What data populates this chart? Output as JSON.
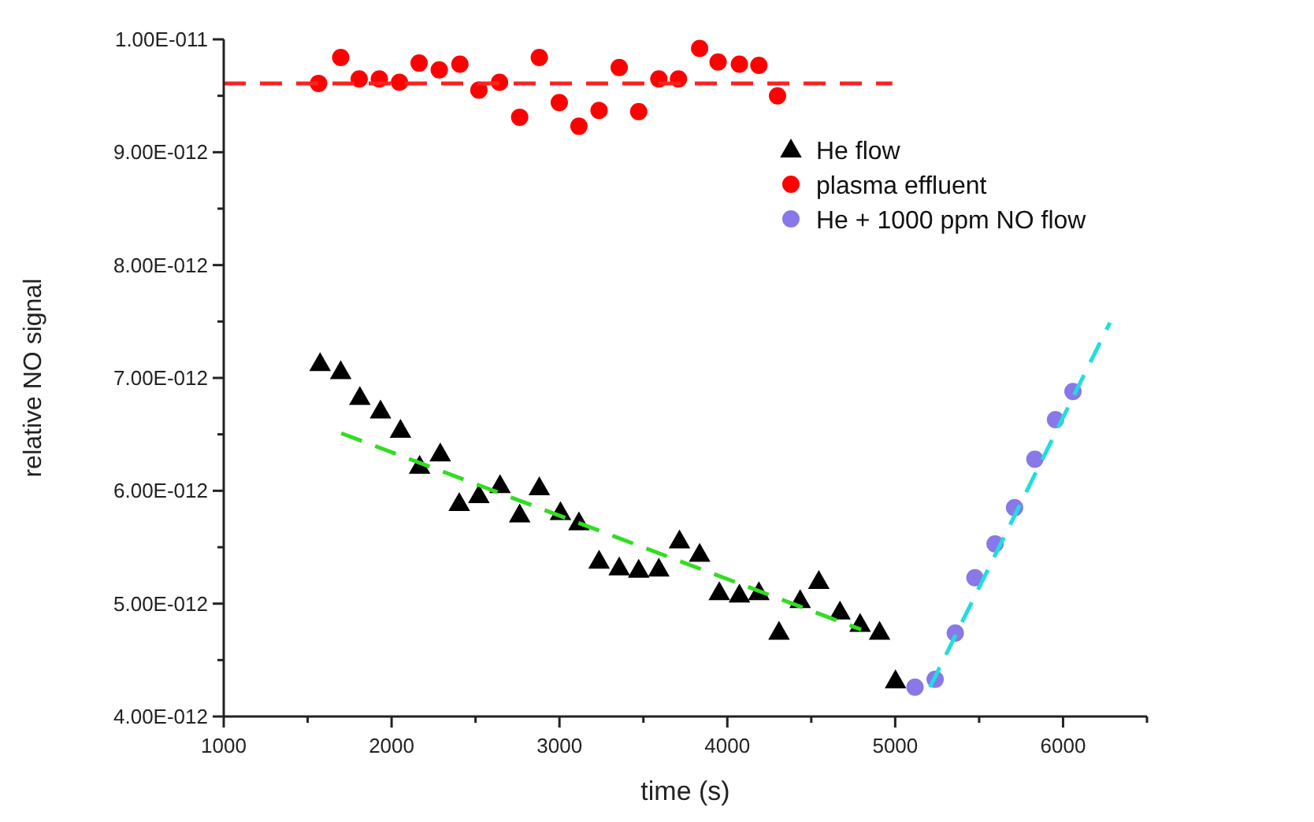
{
  "chart_data": {
    "type": "scatter",
    "xlabel": "time (s)",
    "ylabel": "relative NO signal",
    "xlim": [
      1000,
      6500
    ],
    "ylim": [
      4e-12,
      1e-11
    ],
    "xticks": [
      1000,
      {
        "value": 1500,
        "label": null
      },
      2000,
      {
        "value": 2500,
        "label": null
      },
      3000,
      {
        "value": 3500,
        "label": null
      },
      4000,
      {
        "value": 4500,
        "label": null
      },
      5000,
      {
        "value": 5500,
        "label": null
      },
      6000,
      {
        "value": 6500,
        "label": null
      }
    ],
    "yticks": [
      {
        "value": 4e-12,
        "label": "4.00E-012"
      },
      {
        "value": 4.5e-12,
        "label": null
      },
      {
        "value": 5e-12,
        "label": "5.00E-012"
      },
      {
        "value": 5.5e-12,
        "label": null
      },
      {
        "value": 6e-12,
        "label": "6.00E-012"
      },
      {
        "value": 6.5e-12,
        "label": null
      },
      {
        "value": 7e-12,
        "label": "7.00E-012"
      },
      {
        "value": 7.5e-12,
        "label": null
      },
      {
        "value": 8e-12,
        "label": "8.00E-012"
      },
      {
        "value": 8.5e-12,
        "label": null
      },
      {
        "value": 9e-12,
        "label": "9.00E-012"
      },
      {
        "value": 9.5e-12,
        "label": null
      },
      {
        "value": 1e-11,
        "label": "1.00E-011"
      }
    ],
    "grid": false,
    "legend": "top right",
    "series": [
      {
        "name": "He flow",
        "color": "#000000",
        "marker": "triangle",
        "x": [
          1574,
          1697,
          1811,
          1934,
          2053,
          2167,
          2290,
          2403,
          2520,
          2646,
          2763,
          2880,
          3006,
          3116,
          3236,
          3356,
          3472,
          3592,
          3715,
          3835,
          3952,
          4072,
          4188,
          4308,
          4434,
          4545,
          4671,
          4791,
          4907,
          5002
        ],
        "values": [
          7.13e-12,
          7.06e-12,
          6.83e-12,
          6.71e-12,
          6.54e-12,
          6.22e-12,
          6.33e-12,
          5.89e-12,
          5.96e-12,
          6.05e-12,
          5.79e-12,
          6.03e-12,
          5.81e-12,
          5.72e-12,
          5.38e-12,
          5.32e-12,
          5.3e-12,
          5.31e-12,
          5.56e-12,
          5.44e-12,
          5.1e-12,
          5.08e-12,
          5.1e-12,
          4.75e-12,
          5.03e-12,
          5.2e-12,
          4.93e-12,
          4.82e-12,
          4.75e-12,
          4.32e-12
        ]
      },
      {
        "name": "plasma effluent",
        "color": "#ff0000",
        "marker": "circle",
        "x": [
          1565,
          1697,
          1807,
          1927,
          2047,
          2164,
          2284,
          2407,
          2520,
          2643,
          2763,
          2880,
          2999,
          3116,
          3236,
          3356,
          3472,
          3592,
          3709,
          3835,
          3945,
          4072,
          4188,
          4299
        ],
        "values": [
          9.61e-12,
          9.84e-12,
          9.65e-12,
          9.65e-12,
          9.62e-12,
          9.79e-12,
          9.73e-12,
          9.78e-12,
          9.55e-12,
          9.62e-12,
          9.31e-12,
          9.84e-12,
          9.44e-12,
          9.23e-12,
          9.37e-12,
          9.75e-12,
          9.36e-12,
          9.65e-12,
          9.65e-12,
          9.92e-12,
          9.8e-12,
          9.78e-12,
          9.77e-12,
          9.5e-12
        ]
      },
      {
        "name": "He + 1000 ppm NO flow",
        "color": "#8878e8",
        "marker": "circle",
        "x": [
          5118,
          5238,
          5358,
          5475,
          5595,
          5711,
          5832,
          5955,
          6059
        ],
        "values": [
          4.26e-12,
          4.33e-12,
          4.74e-12,
          5.23e-12,
          5.53e-12,
          5.85e-12,
          6.28e-12,
          6.63e-12,
          6.88e-12
        ]
      },
      {
        "type": "line",
        "color": "#ff2020",
        "line_style": "dashed",
        "x": [
          1000,
          4983
        ],
        "values": [
          9.61e-12,
          9.61e-12
        ]
      },
      {
        "type": "line",
        "color": "#33dd22",
        "line_style": "dashed",
        "x": [
          1700,
          4797
        ],
        "values": [
          6.51e-12,
          4.77e-12
        ]
      },
      {
        "type": "line",
        "color": "#22dddd",
        "line_style": "dashed",
        "x": [
          5207,
          6279
        ],
        "values": [
          4.26e-12,
          7.49e-12
        ]
      }
    ]
  }
}
